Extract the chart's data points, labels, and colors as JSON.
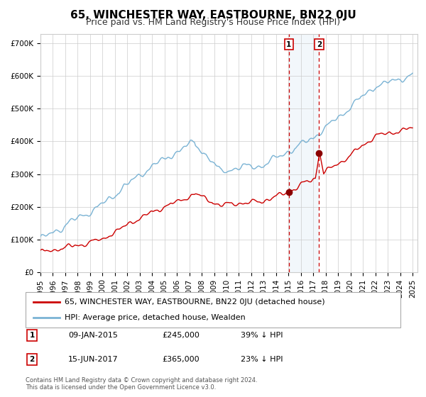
{
  "title": "65, WINCHESTER WAY, EASTBOURNE, BN22 0JU",
  "subtitle": "Price paid vs. HM Land Registry's House Price Index (HPI)",
  "ylim": [
    0,
    730000
  ],
  "hpi_color": "#7ab3d4",
  "price_color": "#cc0000",
  "marker_color": "#8b0000",
  "vline_color": "#cc0000",
  "shade_color": "#daeaf6",
  "legend_house": "65, WINCHESTER WAY, EASTBOURNE, BN22 0JU (detached house)",
  "legend_hpi": "HPI: Average price, detached house, Wealden",
  "t1_year_float": 2015.03,
  "t1_price": 245000,
  "t2_year_float": 2017.46,
  "t2_price": 365000,
  "transaction1_date": "09-JAN-2015",
  "transaction1_price": "£245,000",
  "transaction1_pct": "39% ↓ HPI",
  "transaction2_date": "15-JUN-2017",
  "transaction2_price": "£365,000",
  "transaction2_pct": "23% ↓ HPI",
  "footnote1": "Contains HM Land Registry data © Crown copyright and database right 2024.",
  "footnote2": "This data is licensed under the Open Government Licence v3.0.",
  "yticks": [
    0,
    100000,
    200000,
    300000,
    400000,
    500000,
    600000,
    700000
  ],
  "ytick_labels": [
    "£0",
    "£100K",
    "£200K",
    "£300K",
    "£400K",
    "£500K",
    "£600K",
    "£700K"
  ],
  "background_color": "#ffffff",
  "grid_color": "#cccccc",
  "title_fontsize": 11,
  "subtitle_fontsize": 9,
  "axis_fontsize": 7.5,
  "legend_fontsize": 8
}
